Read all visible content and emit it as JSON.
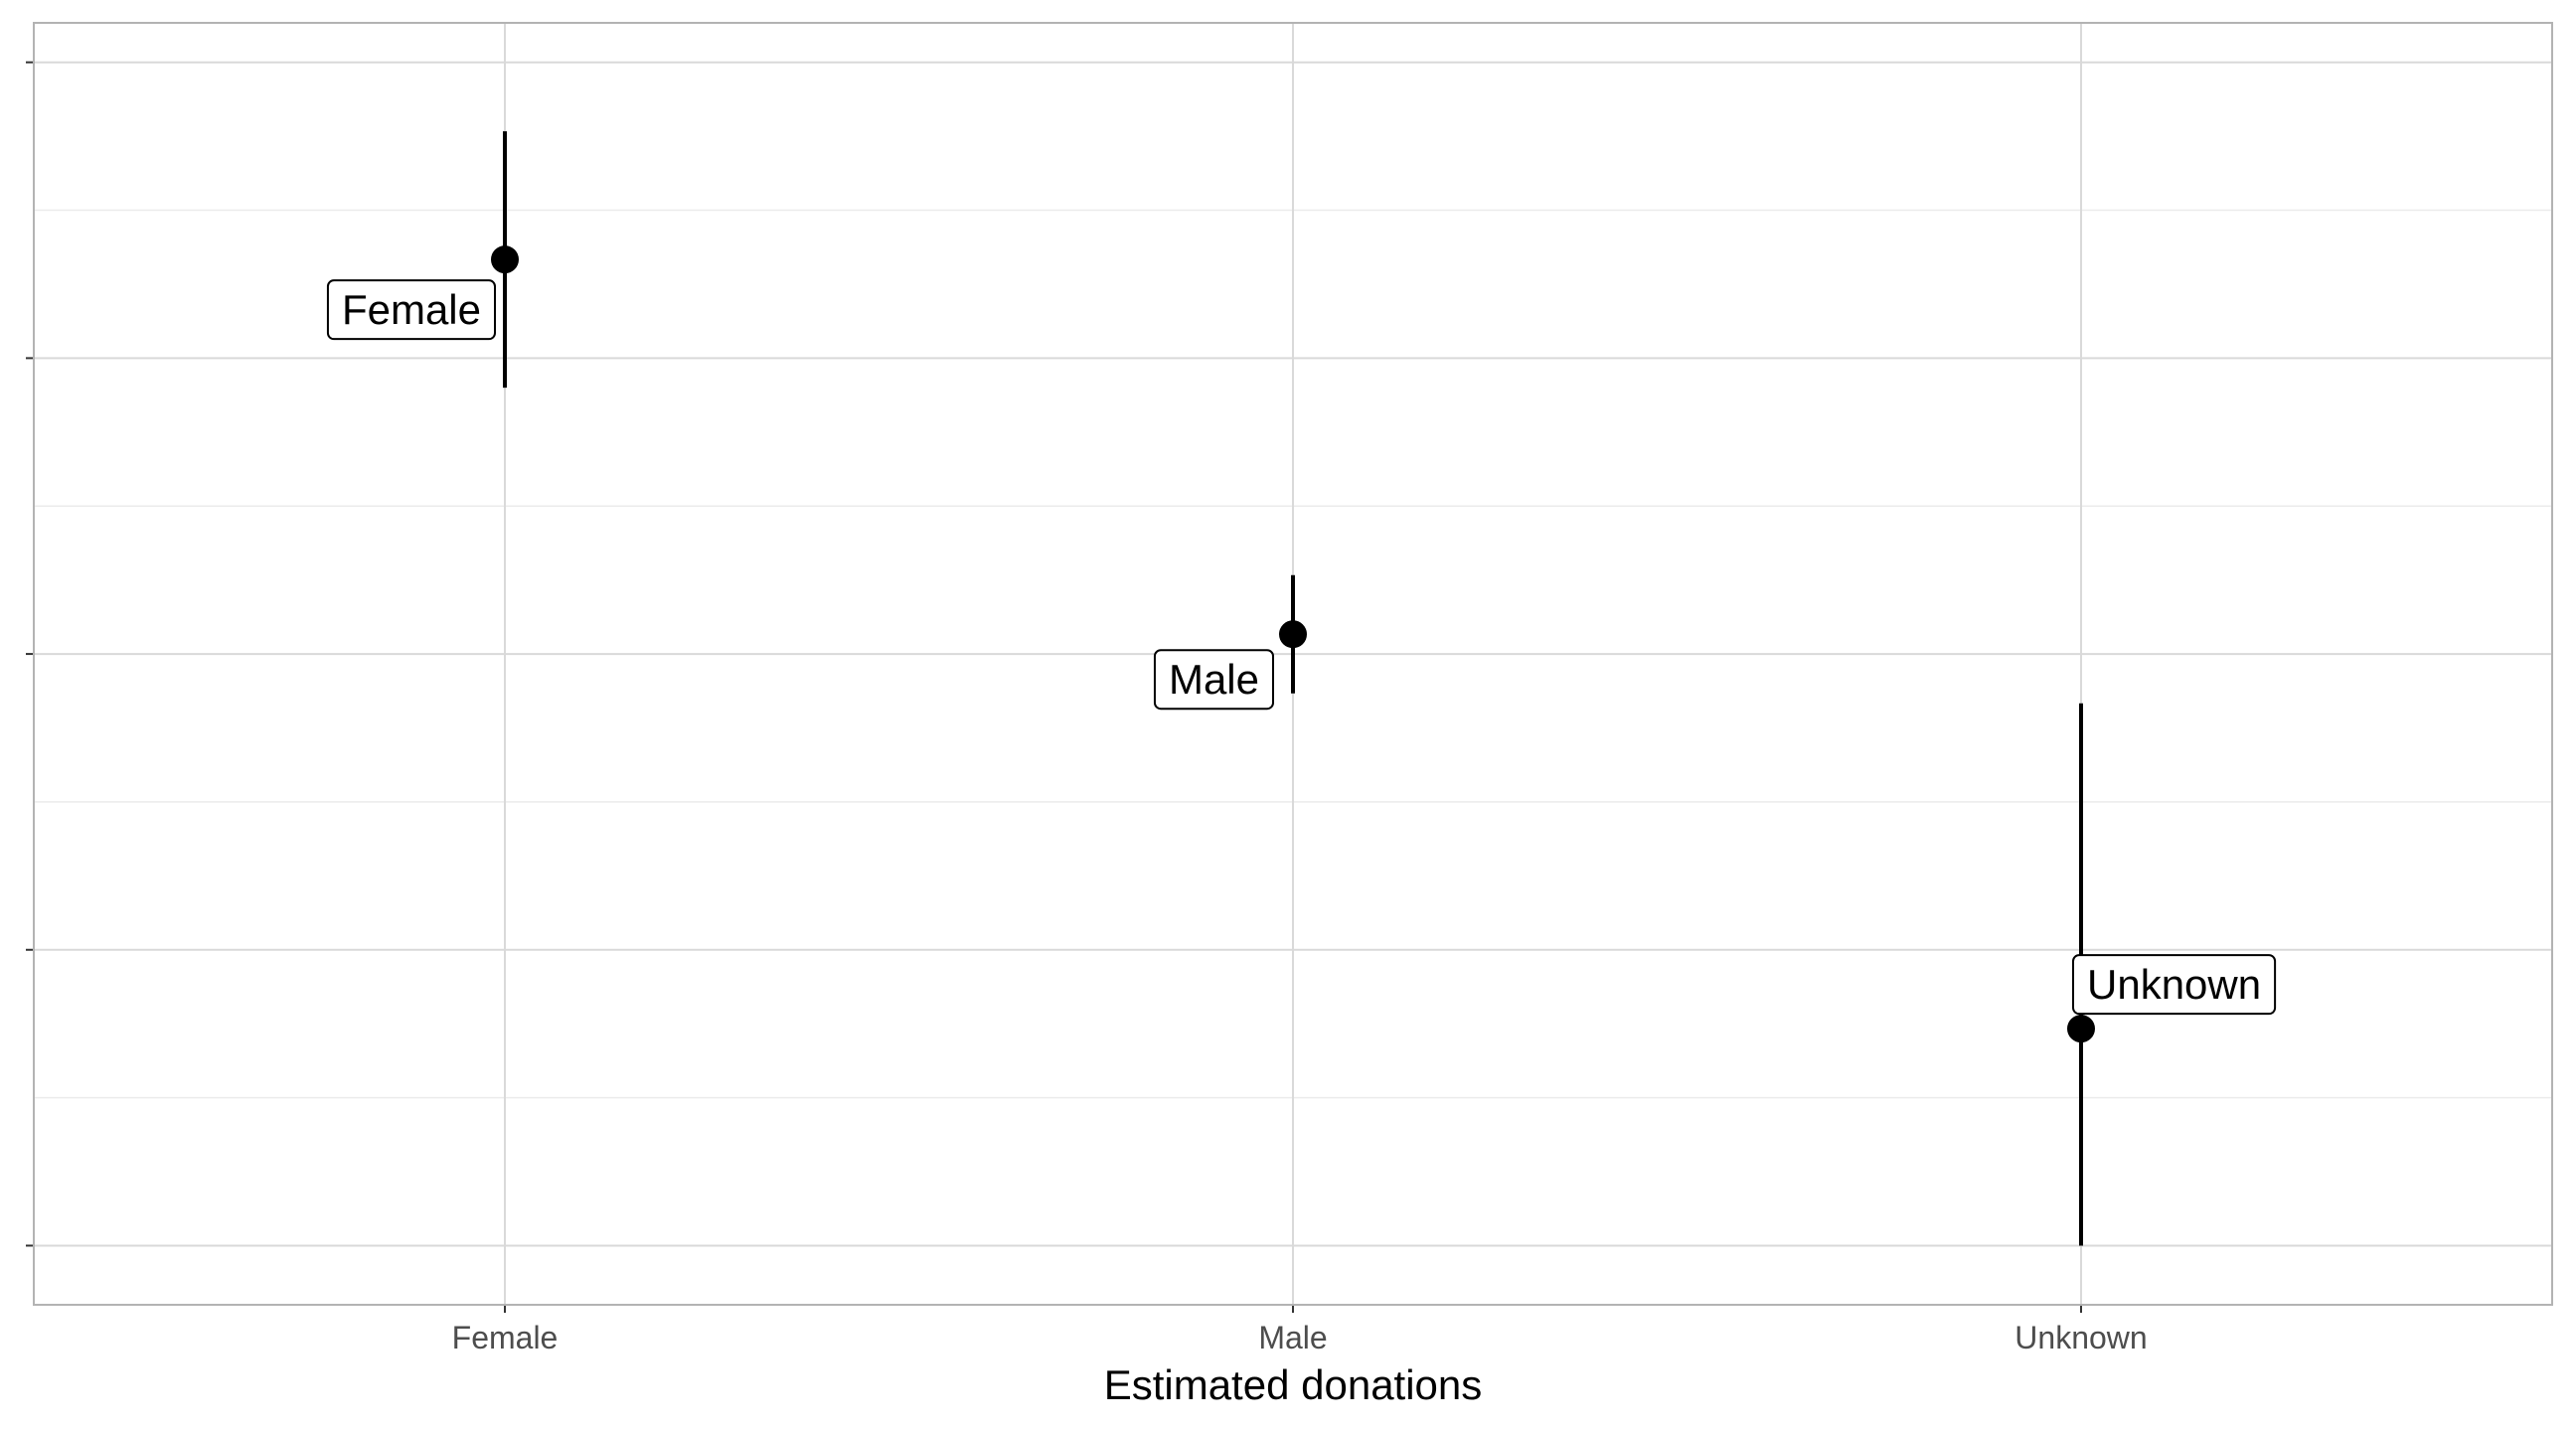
{
  "chart_data": {
    "type": "scatter",
    "categories": [
      "Female",
      "Male",
      "Unknown"
    ],
    "points": [
      {
        "category": "Female",
        "y": 7.0,
        "ymin": 5.7,
        "ymax": 8.3,
        "label": "Female"
      },
      {
        "category": "Male",
        "y": 3.2,
        "ymin": 2.6,
        "ymax": 3.8,
        "label": "Male"
      },
      {
        "category": "Unknown",
        "y": -0.8,
        "ymin": -3.0,
        "ymax": 2.5,
        "label": "Unknown"
      }
    ],
    "title": "",
    "xlabel": "Estimated donations",
    "ylabel": "",
    "ylim": [
      -3.6,
      9.4
    ],
    "y_major_ticks": [
      -3,
      0,
      3,
      6,
      9
    ],
    "grid": true,
    "legend": "none",
    "colors": {
      "point": "#000000",
      "errorbar": "#000000",
      "grid_major": "#d9d9d9",
      "grid_minor": "#ebebeb",
      "panel_border": "#b3b3b3",
      "tick_text": "#4d4d4d"
    }
  }
}
